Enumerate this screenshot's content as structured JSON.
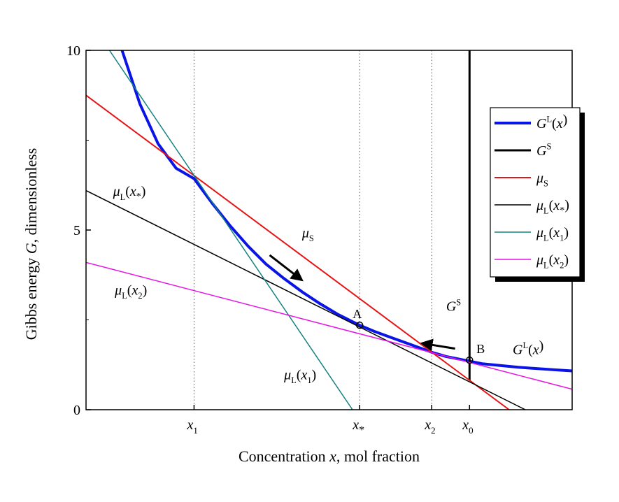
{
  "chart_data": {
    "type": "line",
    "xlabel": "Concentration",
    "xlabel_var": "x",
    "xlabel_rest": ", mol fraction",
    "ylabel": "Gibbs energy",
    "ylabel_var": "G",
    "ylabel_rest": ",  dimensionless",
    "xlim": [
      0,
      1.35
    ],
    "ylim": [
      0,
      10
    ],
    "yticks": [
      {
        "value": 0,
        "label": "0"
      },
      {
        "value": 5,
        "label": "5"
      },
      {
        "value": 10,
        "label": "10"
      }
    ],
    "xticks": [
      {
        "value": 0.3,
        "main": "x",
        "sub": "1"
      },
      {
        "value": 0.76,
        "main": "x",
        "sub": "*"
      },
      {
        "value": 0.96,
        "main": "x",
        "sub": "2"
      },
      {
        "value": 1.065,
        "main": "x",
        "sub": "0"
      }
    ],
    "grid": "dotted vertical lines at x1, x*, x2",
    "colors": {
      "GL": "#0a14e6",
      "GS": "#000000",
      "muS": "#e61414",
      "muLxs": "#000000",
      "muLx1": "#148282",
      "muLx2": "#e614e6"
    },
    "series": [
      {
        "id": "GL",
        "legend_main": "G",
        "legend_sup": "L",
        "legend_rest": "(x)",
        "points": [
          [
            0.1,
            10.0
          ],
          [
            0.15,
            8.5
          ],
          [
            0.2,
            7.4
          ],
          [
            0.25,
            6.72
          ],
          [
            0.3,
            6.43
          ],
          [
            0.35,
            5.75
          ],
          [
            0.4,
            5.12
          ],
          [
            0.45,
            4.55
          ],
          [
            0.5,
            4.05
          ],
          [
            0.55,
            3.65
          ],
          [
            0.6,
            3.28
          ],
          [
            0.65,
            2.95
          ],
          [
            0.7,
            2.65
          ],
          [
            0.76,
            2.35
          ],
          [
            0.8,
            2.18
          ],
          [
            0.85,
            2.0
          ],
          [
            0.9,
            1.82
          ],
          [
            0.96,
            1.6
          ],
          [
            1.0,
            1.48
          ],
          [
            1.065,
            1.35
          ],
          [
            1.1,
            1.28
          ],
          [
            1.2,
            1.18
          ],
          [
            1.3,
            1.11
          ],
          [
            1.35,
            1.08
          ]
        ]
      },
      {
        "id": "GS",
        "legend_main": "G",
        "legend_sup": "S",
        "legend_rest": "",
        "points": [
          [
            1.065,
            10.0
          ],
          [
            1.065,
            0.82
          ]
        ]
      },
      {
        "id": "muS",
        "legend_main": "μ",
        "legend_sub": "S",
        "legend_rest": "",
        "points": [
          [
            0.0,
            8.75
          ],
          [
            1.175,
            0.0
          ]
        ]
      },
      {
        "id": "muLxs",
        "legend_main": "μ",
        "legend_sub": "L",
        "legend_rest": "(x*)",
        "points": [
          [
            0.0,
            6.1
          ],
          [
            1.22,
            0.0
          ]
        ]
      },
      {
        "id": "muLx1",
        "legend_main": "μ",
        "legend_sub": "L",
        "legend_rest": "(x1)",
        "points": [
          [
            0.065,
            10.0
          ],
          [
            0.74,
            0.0
          ]
        ]
      },
      {
        "id": "muLx2",
        "legend_main": "μ",
        "legend_sub": "L",
        "legend_rest": "(x2)",
        "points": [
          [
            0.0,
            4.1
          ],
          [
            1.35,
            0.57
          ]
        ]
      }
    ],
    "points": [
      {
        "label": "A",
        "x": 0.76,
        "y": 2.35
      },
      {
        "label": "B",
        "x": 1.065,
        "y": 1.38
      }
    ],
    "arrows": [
      {
        "from": [
          0.51,
          4.3
        ],
        "to": [
          0.59,
          3.68
        ]
      },
      {
        "from": [
          1.025,
          1.7
        ],
        "to": [
          0.945,
          1.83
        ]
      }
    ],
    "annotations": [
      {
        "main": "μ",
        "sub": "L",
        "rest": "(x*)",
        "x": 0.075,
        "y": 5.95
      },
      {
        "main": "μ",
        "sub": "S",
        "rest": "",
        "x": 0.6,
        "y": 4.8
      },
      {
        "main": "μ",
        "sub": "L",
        "rest": "(x2)",
        "x": 0.08,
        "y": 3.2
      },
      {
        "main": "μ",
        "sub": "L",
        "rest": "(x1)",
        "x": 0.55,
        "y": 0.85
      },
      {
        "main": "G",
        "sup": "S",
        "rest": "",
        "x": 1.0,
        "y": 2.75
      },
      {
        "main": "G",
        "sup": "L",
        "rest": "(x)",
        "x": 1.185,
        "y": 1.55
      }
    ]
  }
}
